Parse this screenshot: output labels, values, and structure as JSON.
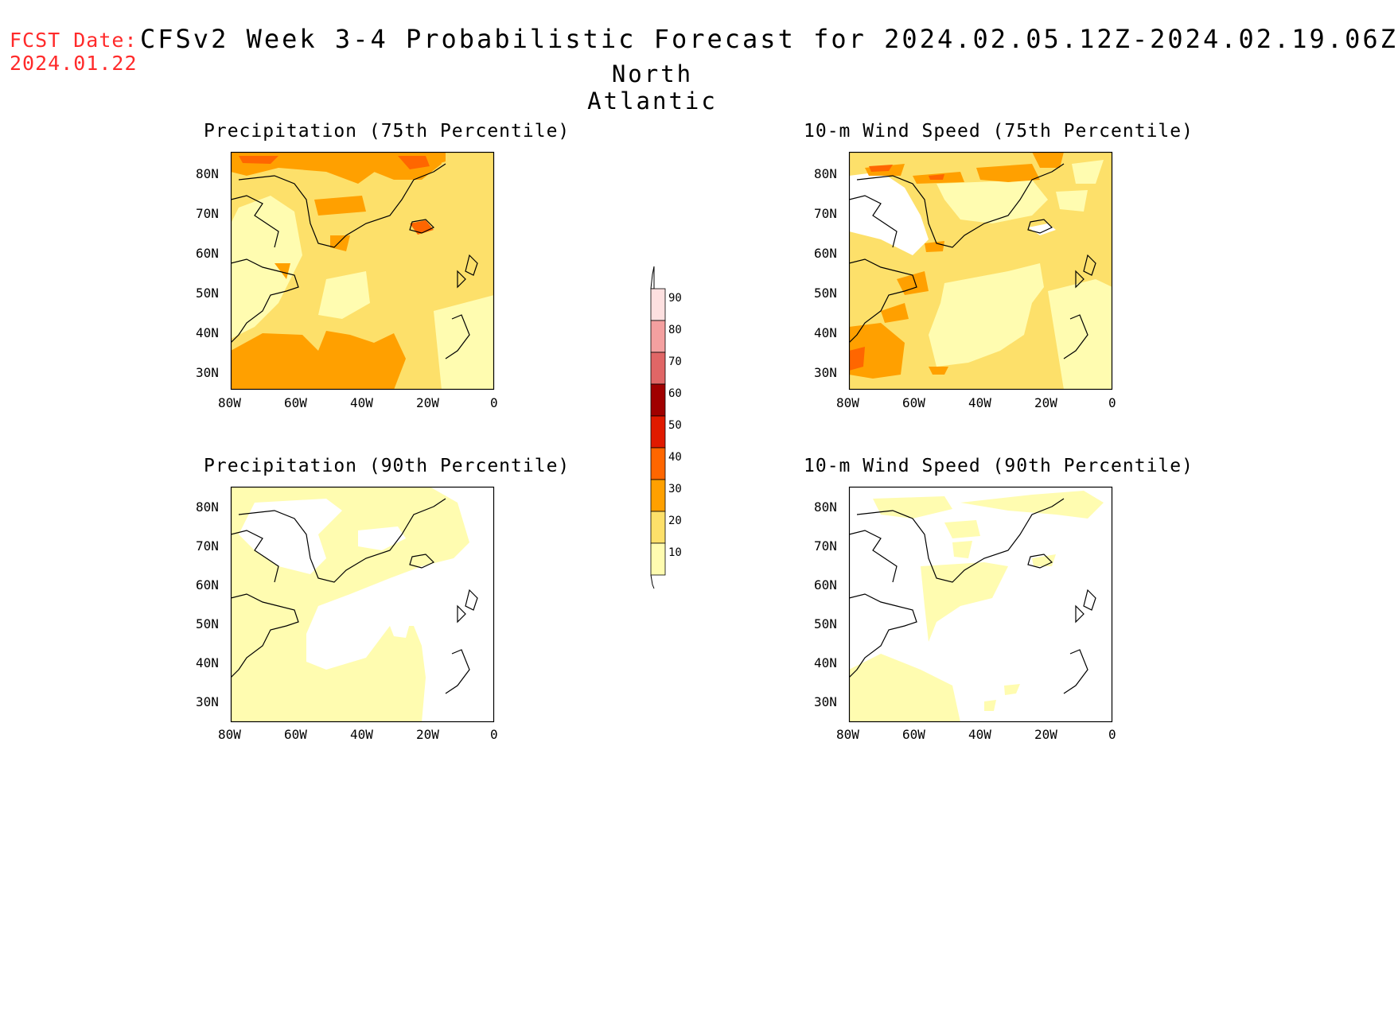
{
  "header": {
    "fcst_label": "FCST Date:",
    "fcst_date": "2024.01.22",
    "title": "CFSv2 Week 3-4 Probabilistic Forecast for 2024.02.05.12Z-2024.02.19.06Z",
    "region": "North Atlantic"
  },
  "axes": {
    "lat_labels": [
      "80N",
      "70N",
      "60N",
      "50N",
      "40N",
      "30N"
    ],
    "lon_labels": [
      "80W",
      "60W",
      "40W",
      "20W",
      "0"
    ]
  },
  "panels": [
    {
      "title": "Precipitation (75th Percentile)",
      "dominant_category": "20-30",
      "secondary_category": "30-40"
    },
    {
      "title": "10-m Wind Speed (75th Percentile)",
      "dominant_category": "20-30",
      "secondary_category": "10-20"
    },
    {
      "title": "Precipitation (90th Percentile)",
      "dominant_category": "10-20",
      "secondary_category": "<10"
    },
    {
      "title": "10-m Wind Speed (90th Percentile)",
      "dominant_category": "<10",
      "secondary_category": "10-20"
    }
  ],
  "colorbar": {
    "labels": [
      "90",
      "80",
      "70",
      "60",
      "50",
      "40",
      "30",
      "20",
      "10"
    ],
    "colors": [
      "#fde0e0",
      "#f4a0a0",
      "#e06666",
      "#a00000",
      "#e01a00",
      "#ff6600",
      "#ffa000",
      "#fde06a",
      "#fffcb0"
    ]
  }
}
